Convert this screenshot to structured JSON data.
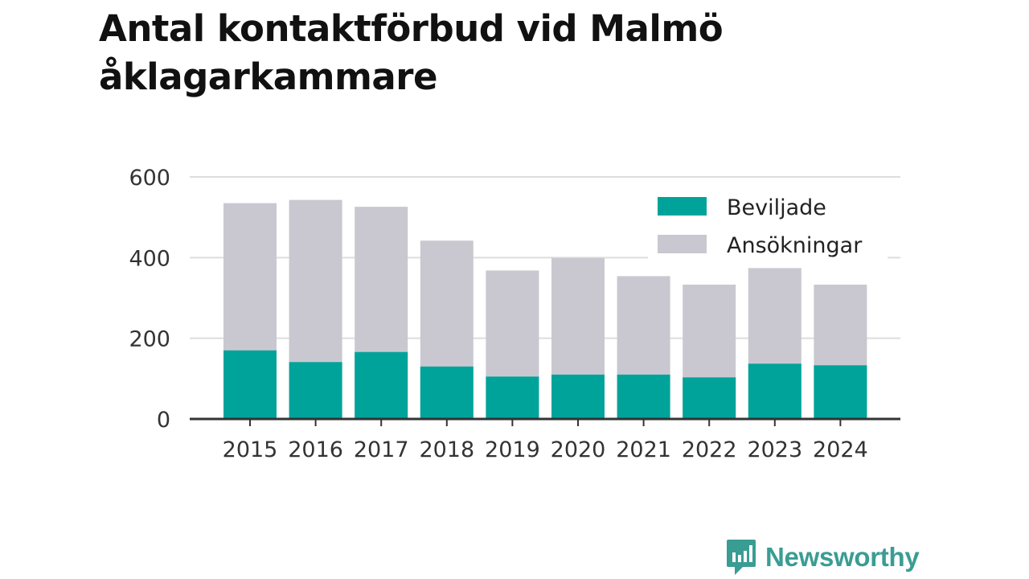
{
  "chart_data": {
    "type": "bar",
    "stacked": "overlay",
    "title": "Antal kontaktförbud vid Malmö åklagarkammare",
    "categories": [
      "2015",
      "2016",
      "2017",
      "2018",
      "2019",
      "2020",
      "2021",
      "2022",
      "2023",
      "2024"
    ],
    "series": [
      {
        "name": "Beviljade",
        "color": "#00a39a",
        "values": [
          170,
          141,
          166,
          130,
          105,
          110,
          110,
          103,
          137,
          133
        ]
      },
      {
        "name": "Ansökningar",
        "color": "#c9c8d0",
        "values": [
          535,
          543,
          526,
          442,
          368,
          399,
          354,
          333,
          374,
          333
        ]
      }
    ],
    "ylim": [
      0,
      600
    ],
    "yticks": [
      "0",
      "200",
      "400",
      "600"
    ],
    "grid": true,
    "legend_position": "top-right"
  },
  "brand": {
    "name": "Newsworthy",
    "logo_icon": "newsworthy-logo-icon",
    "color": "#3a9d93"
  }
}
